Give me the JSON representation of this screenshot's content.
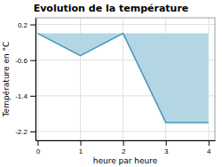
{
  "chart_data": {
    "type": "area",
    "title": "Evolution de la température",
    "xlabel": "heure par heure",
    "ylabel": "Température en °C",
    "x": [
      0,
      1,
      2,
      3,
      4
    ],
    "values": [
      0.0,
      -0.5,
      0.0,
      -2.0,
      -2.0
    ],
    "color": "#4499bb",
    "xlim": [
      -0.05,
      4.15
    ],
    "ylim": [
      -2.4,
      0.35
    ],
    "xticks": [
      0,
      1,
      2,
      3,
      4
    ],
    "yticks": [
      0.2,
      -0.6,
      -1.4,
      -2.2
    ],
    "grid": true
  }
}
